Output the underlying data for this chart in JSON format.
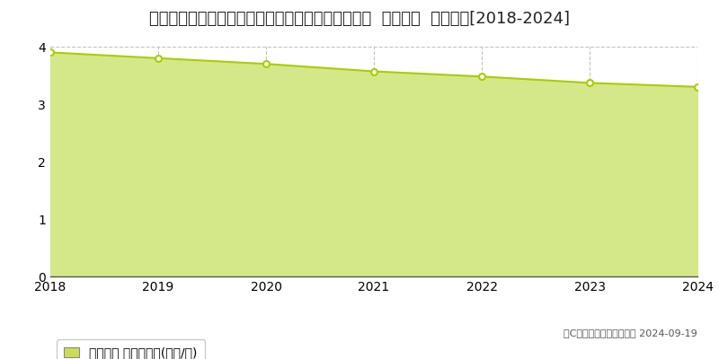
{
  "title": "和歌山県有田郡有田川町大字粟生字戎山３９９番２  基準地価  地価推移[2018-2024]",
  "years": [
    2018,
    2019,
    2020,
    2021,
    2022,
    2023,
    2024
  ],
  "values": [
    3.9,
    3.8,
    3.7,
    3.57,
    3.48,
    3.37,
    3.3
  ],
  "line_color": "#aacc00",
  "fill_color": "#d4e88a",
  "marker_color": "#ffffff",
  "marker_edge_color": "#aacc00",
  "bg_color": "#ffffff",
  "grid_color": "#aaaaaa",
  "ylim": [
    0,
    4
  ],
  "yticks": [
    0,
    1,
    2,
    3,
    4
  ],
  "legend_label": "基準地価 平均坪単価(万円/坪)",
  "legend_marker_color": "#ccdd55",
  "copyright_text": "（C）土地価格ドットコム 2024-09-19",
  "title_fontsize": 13,
  "axis_fontsize": 10,
  "legend_fontsize": 10
}
